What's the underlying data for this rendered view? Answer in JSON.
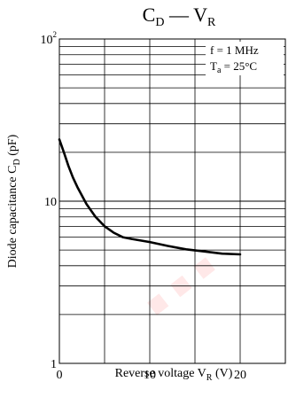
{
  "colors": {
    "line": "#000000",
    "grid": "#000000",
    "watermark": "#ff0000"
  },
  "watermark_text": "...",
  "chart_data": {
    "type": "line",
    "title": {
      "main": "C",
      "main_sub": "D",
      "dash": "—",
      "right": "V",
      "right_sub": "R"
    },
    "xlabel": {
      "text": "Reverse voltage  V",
      "sub": "R",
      "unit": "  (V)"
    },
    "ylabel": {
      "text": "Diode capacitance  C",
      "sub": "D",
      "unit": "  (pF)"
    },
    "xlim": [
      0,
      25
    ],
    "ylim": [
      1,
      100
    ],
    "yscale": "log",
    "grid": true,
    "x_ticks": [
      "0",
      "10",
      "20"
    ],
    "y_ticks": [
      {
        "value": 100,
        "base": "10",
        "exp": "2"
      },
      {
        "value": 10,
        "base": "10",
        "exp": ""
      },
      {
        "value": 1,
        "base": "1",
        "exp": ""
      }
    ],
    "annotations": [
      {
        "text": "f = 1 MHz",
        "sub": ""
      },
      {
        "text": "T",
        "sub": "a",
        "after": " = 25°C"
      }
    ],
    "series": [
      {
        "x": [
          0,
          0.5,
          1,
          1.5,
          2,
          3,
          4,
          5,
          6,
          7,
          8,
          10,
          12,
          14,
          16,
          18,
          20
        ],
        "y": [
          24,
          20,
          16.5,
          14,
          12.2,
          9.6,
          8,
          7,
          6.4,
          6.0,
          5.85,
          5.6,
          5.3,
          5.05,
          4.9,
          4.75,
          4.7
        ]
      }
    ]
  }
}
